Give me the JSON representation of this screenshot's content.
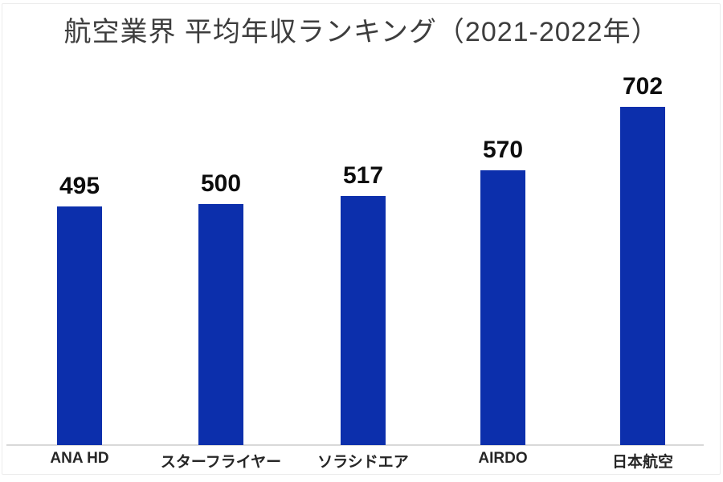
{
  "chart_data": {
    "type": "bar",
    "title": "航空業界 平均年収ランキング（2021-2022年）",
    "categories": [
      "ANA HD",
      "スターフライヤー",
      "ソラシドエア",
      "AIRDO",
      "日本航空"
    ],
    "values": [
      495,
      500,
      517,
      570,
      702
    ],
    "data_labels": [
      "495",
      "500",
      "517",
      "570",
      "702"
    ],
    "xlabel": "",
    "ylabel": "",
    "legend": "none",
    "grid": false,
    "y_axis_labels_visible": false
  },
  "style": {
    "bar_color": "#0c2fac",
    "title_color": "#3d3d3d",
    "value_label_color": "#0d0d0d",
    "category_label_color": "#262626",
    "axis_line_color": "#d9d9d9",
    "background_color": "#ffffff",
    "border_color": "#ececec"
  }
}
